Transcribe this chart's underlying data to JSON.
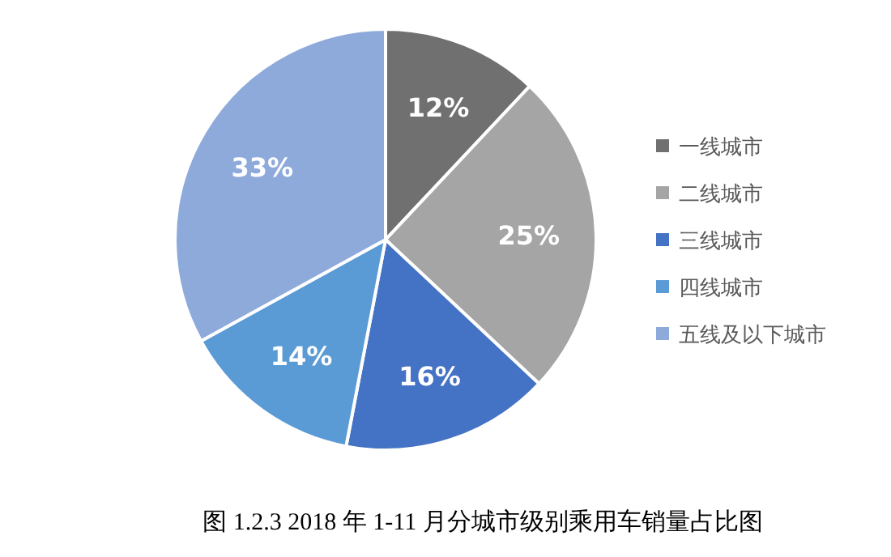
{
  "chart_data": {
    "type": "pie",
    "title": "图 1.2.3 2018 年 1-11 月分城市级别乘用车销量占比图",
    "categories": [
      "一线城市",
      "二线城市",
      "三线城市",
      "四线城市",
      "五线及以下城市"
    ],
    "values": [
      12,
      25,
      16,
      14,
      33
    ],
    "value_labels": [
      "12%",
      "25%",
      "16%",
      "14%",
      "33%"
    ],
    "colors": [
      "#707070",
      "#a5a5a5",
      "#4472c4",
      "#5b9bd5",
      "#8eaadb"
    ],
    "legend": "right"
  }
}
